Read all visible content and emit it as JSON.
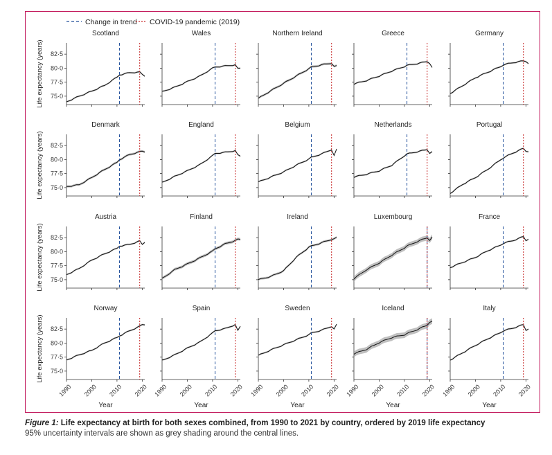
{
  "legend": {
    "trend_label": "Change in trend",
    "covid_label": "COVID-19 pandemic (2019)",
    "trend_color": "#1f4e99",
    "covid_color": "#c62828"
  },
  "caption": {
    "figure_label": "Figure 1:",
    "title": " Life expectancy at birth for both sexes combined, from 1990 to 2021 by country, ordered by 2019 life expectancy",
    "note": "95% uncertainty intervals are shown as grey shading around the central lines."
  },
  "chart_data": {
    "type": "line",
    "title": "Life expectancy at birth for both sexes combined, from 1990 to 2021 by country, ordered by 2019 life expectancy",
    "xlabel": "Year",
    "ylabel": "Life expectancy (years)",
    "xlim": [
      1990,
      2021
    ],
    "ylim": [
      73.5,
      84.5
    ],
    "x_ticks": [
      1990,
      2000,
      2010,
      2020
    ],
    "x_tick_labels": [
      "1990",
      "2000",
      "2010",
      "2020"
    ],
    "y_ticks": [
      75.0,
      77.5,
      80.0,
      82.5
    ],
    "y_tick_labels": [
      "75·0",
      "77·5",
      "80·0",
      "82·5"
    ],
    "covid_year": 2019,
    "anchor_years": [
      1990,
      1995,
      2000,
      2005,
      2010,
      2011,
      2015,
      2019,
      2020,
      2021
    ],
    "panels": [
      {
        "name": "Scotland",
        "trend_year": 2011,
        "ui": 0.15,
        "values": [
          74.0,
          75.0,
          75.9,
          76.9,
          78.4,
          78.8,
          79.2,
          79.3,
          78.9,
          78.6
        ]
      },
      {
        "name": "Wales",
        "trend_year": 2011,
        "ui": 0.15,
        "values": [
          75.8,
          76.6,
          77.6,
          78.6,
          80.0,
          80.2,
          80.4,
          80.6,
          79.9,
          80.0
        ]
      },
      {
        "name": "Northern Ireland",
        "trend_year": 2011,
        "ui": 0.2,
        "values": [
          74.6,
          76.0,
          77.3,
          78.6,
          79.9,
          80.2,
          80.6,
          80.9,
          80.3,
          80.4
        ]
      },
      {
        "name": "Greece",
        "trend_year": 2011,
        "ui": 0.15,
        "values": [
          77.2,
          77.8,
          78.6,
          79.5,
          80.3,
          80.5,
          80.8,
          81.2,
          80.9,
          80.1
        ]
      },
      {
        "name": "Germany",
        "trend_year": 2011,
        "ui": 0.15,
        "values": [
          75.5,
          76.9,
          78.3,
          79.3,
          80.3,
          80.6,
          81.0,
          81.3,
          81.2,
          80.9
        ]
      },
      {
        "name": "Denmark",
        "trend_year": 2011,
        "ui": 0.2,
        "values": [
          75.2,
          75.5,
          76.8,
          78.2,
          79.5,
          80.0,
          80.9,
          81.4,
          81.5,
          81.4
        ]
      },
      {
        "name": "England",
        "trend_year": 2011,
        "ui": 0.15,
        "values": [
          75.9,
          77.0,
          78.0,
          79.1,
          80.7,
          81.1,
          81.3,
          81.6,
          80.8,
          80.6
        ]
      },
      {
        "name": "Belgium",
        "trend_year": 2011,
        "ui": 0.15,
        "values": [
          76.0,
          76.9,
          77.8,
          79.0,
          80.1,
          80.4,
          81.0,
          81.8,
          80.7,
          81.8
        ]
      },
      {
        "name": "Netherlands",
        "trend_year": 2011,
        "ui": 0.15,
        "values": [
          76.9,
          77.4,
          78.0,
          79.0,
          80.7,
          81.0,
          81.4,
          81.8,
          81.2,
          81.4
        ]
      },
      {
        "name": "Portugal",
        "trend_year": 2011,
        "ui": 0.15,
        "values": [
          74.0,
          75.6,
          76.8,
          78.3,
          80.0,
          80.3,
          81.2,
          82.0,
          81.5,
          81.5
        ]
      },
      {
        "name": "Austria",
        "trend_year": 2011,
        "ui": 0.15,
        "values": [
          75.9,
          77.0,
          78.5,
          79.6,
          80.6,
          81.0,
          81.3,
          81.9,
          81.3,
          81.7
        ]
      },
      {
        "name": "Finland",
        "trend_year": 2011,
        "ui": 0.25,
        "values": [
          75.2,
          76.8,
          77.8,
          78.9,
          80.1,
          80.5,
          81.4,
          82.0,
          82.2,
          82.2
        ]
      },
      {
        "name": "Ireland",
        "trend_year": 2011,
        "ui": 0.2,
        "values": [
          75.0,
          75.6,
          76.6,
          79.0,
          80.8,
          81.0,
          81.6,
          82.2,
          82.3,
          82.5
        ]
      },
      {
        "name": "Luxembourg",
        "trend_year": 2019,
        "ui": 0.45,
        "values": [
          75.2,
          76.8,
          78.0,
          79.4,
          80.7,
          81.0,
          81.8,
          82.5,
          82.1,
          82.6
        ]
      },
      {
        "name": "France",
        "trend_year": 2011,
        "ui": 0.15,
        "values": [
          77.2,
          78.1,
          79.0,
          80.2,
          81.2,
          81.5,
          82.0,
          82.7,
          82.0,
          82.3
        ]
      },
      {
        "name": "Norway",
        "trend_year": 2011,
        "ui": 0.15,
        "values": [
          77.0,
          77.9,
          78.7,
          80.0,
          81.0,
          81.3,
          82.2,
          83.0,
          83.3,
          83.3
        ]
      },
      {
        "name": "Spain",
        "trend_year": 2011,
        "ui": 0.15,
        "values": [
          76.9,
          77.9,
          79.1,
          80.2,
          81.8,
          82.2,
          82.6,
          83.3,
          82.2,
          83.0
        ]
      },
      {
        "name": "Sweden",
        "trend_year": 2011,
        "ui": 0.15,
        "values": [
          77.8,
          78.8,
          79.7,
          80.6,
          81.5,
          81.8,
          82.3,
          83.0,
          82.5,
          83.3
        ]
      },
      {
        "name": "Iceland",
        "trend_year": 2019,
        "ui": 0.5,
        "values": [
          78.1,
          78.9,
          80.1,
          81.0,
          81.5,
          81.7,
          82.4,
          83.2,
          83.8,
          83.9
        ]
      },
      {
        "name": "Italy",
        "trend_year": 2011,
        "ui": 0.15,
        "values": [
          77.0,
          78.3,
          79.6,
          80.8,
          81.9,
          82.2,
          82.7,
          83.3,
          82.3,
          82.6
        ]
      }
    ]
  }
}
